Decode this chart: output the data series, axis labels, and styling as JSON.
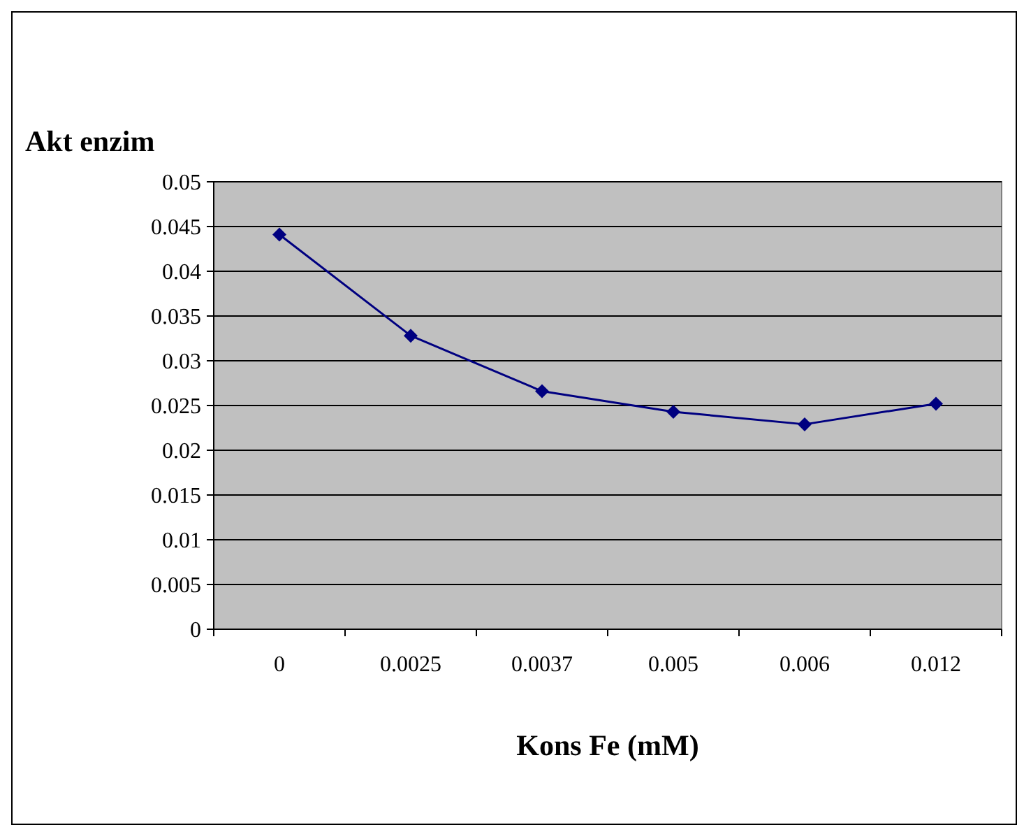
{
  "chart_data": {
    "type": "line",
    "ylabel": "Akt enzim",
    "xlabel": "Kons Fe (mM)",
    "categories": [
      "0",
      "0.0025",
      "0.0037",
      "0.005",
      "0.006",
      "0.012"
    ],
    "series": [
      {
        "color": "#000080",
        "values": [
          0.0441,
          0.0328,
          0.0266,
          0.0243,
          0.0229,
          0.0252
        ]
      }
    ],
    "ylim": [
      0,
      0.05
    ],
    "yticks": [
      0,
      0.005,
      0.01,
      0.015,
      0.02,
      0.025,
      0.03,
      0.035,
      0.04,
      0.045,
      0.05
    ],
    "grid": "y",
    "marker": "diamond",
    "line_style": "solid"
  }
}
